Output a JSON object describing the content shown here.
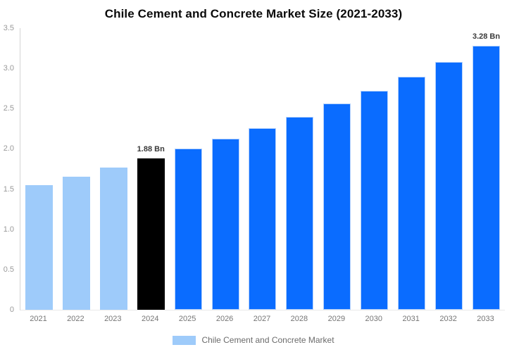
{
  "chart_data": {
    "type": "bar",
    "title": "Chile Cement and Concrete Market Size (2021-2033)",
    "xlabel": "",
    "ylabel": "",
    "unit": "Bn",
    "categories": [
      "2021",
      "2022",
      "2023",
      "2024",
      "2025",
      "2026",
      "2027",
      "2028",
      "2029",
      "2030",
      "2031",
      "2032",
      "2033"
    ],
    "values": [
      1.55,
      1.65,
      1.77,
      1.88,
      2.0,
      2.13,
      2.26,
      2.4,
      2.56,
      2.72,
      2.9,
      3.08,
      3.28
    ],
    "bar_labels": [
      "",
      "",
      "",
      "1.88 Bn",
      "",
      "",
      "",
      "",
      "",
      "",
      "",
      "",
      "3.28 Bn"
    ],
    "bar_colors": [
      "#9ecbfa",
      "#9ecbfa",
      "#9ecbfa",
      "#000000",
      "#0a6cff",
      "#0a6cff",
      "#0a6cff",
      "#0a6cff",
      "#0a6cff",
      "#0a6cff",
      "#0a6cff",
      "#0a6cff",
      "#0a6cff"
    ],
    "ylim": [
      0,
      3.5
    ],
    "y_ticks": [
      {
        "label": "3.5",
        "value": 3.5
      },
      {
        "label": "3.0",
        "value": 3.0
      },
      {
        "label": "2.5",
        "value": 2.5
      },
      {
        "label": "2.0",
        "value": 2.0
      },
      {
        "label": "1.5",
        "value": 1.5
      },
      {
        "label": "1.0",
        "value": 1.0
      },
      {
        "label": "0.5",
        "value": 0.5
      },
      {
        "label": "0",
        "value": 0
      }
    ],
    "grid": false,
    "legend_position": "bottom-center",
    "legend": {
      "label": "Chile Cement and Concrete Market",
      "swatch_color": "#9ecbfa"
    },
    "colors": {
      "historical_bar": "#9ecbfa",
      "highlight_bar": "#000000",
      "forecast_bar": "#0a6cff",
      "title_text": "#0a0a0a",
      "y_tick_text": "#999999",
      "x_tick_text": "#757575",
      "value_label_text": "#3a3a3a",
      "legend_text": "#6b6b6b",
      "y_axis_line": "#d4d4d4",
      "x_axis_line": "#e9e9e9"
    }
  }
}
